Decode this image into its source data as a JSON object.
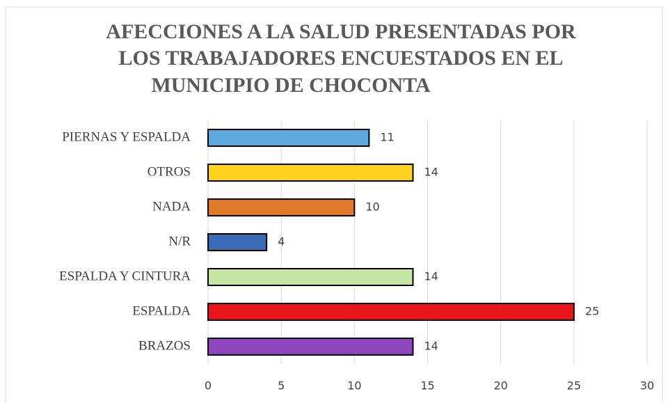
{
  "chart_data": {
    "type": "hbar",
    "title": [
      "AFECCIONES A LA SALUD PRESENTADAS POR",
      "LOS TRABAJADORES ENCUESTADOS EN EL",
      "MUNICIPIO DE CHOCONTA"
    ],
    "categories": [
      "PIERNAS Y ESPALDA",
      "OTROS",
      "NADA",
      "N/R",
      "ESPALDA Y CINTURA",
      "ESPALDA",
      "BRAZOS"
    ],
    "values": [
      11,
      14,
      10,
      4,
      14,
      25,
      14
    ],
    "colors": [
      "#5ea9e0",
      "#ffd21f",
      "#e07a2a",
      "#3a6bb5",
      "#c6e6a4",
      "#e8141b",
      "#8e45bd"
    ],
    "xlim": [
      0,
      30
    ],
    "xticks": [
      0,
      5,
      10,
      15,
      20,
      25,
      30
    ],
    "grid": true
  }
}
